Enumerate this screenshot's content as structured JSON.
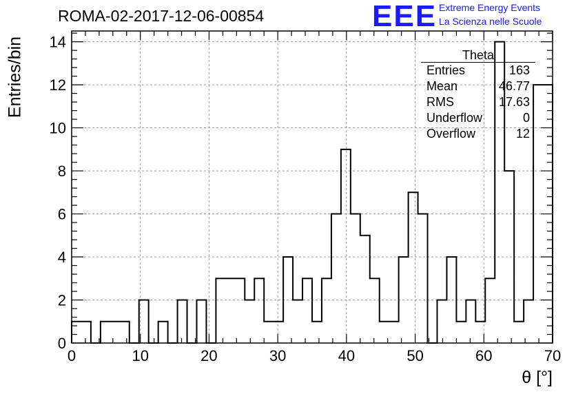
{
  "run_title": "ROMA-02-2017-12-06-00854",
  "logo": {
    "text": "EEE",
    "line1": "Extreme Energy Events",
    "line2": "La Scienza nelle Scuole",
    "color": "#1a1aff"
  },
  "stats": {
    "name": "Theta",
    "rows": [
      {
        "label": "Entries",
        "value": "163"
      },
      {
        "label": "Mean",
        "value": "46.77"
      },
      {
        "label": "RMS",
        "value": "17.63"
      },
      {
        "label": "Underflow",
        "value": "0"
      },
      {
        "label": "Overflow",
        "value": "12"
      }
    ]
  },
  "chart_data": {
    "type": "bar",
    "style": "step-histogram",
    "title": "ROMA-02-2017-12-06-00854",
    "xlabel": "θ [°]",
    "ylabel": "Entries/bin",
    "xlim": [
      0,
      70
    ],
    "ylim": [
      0,
      14.5
    ],
    "bin_width": 1.4,
    "xticks": [
      0,
      10,
      20,
      30,
      40,
      50,
      60,
      70
    ],
    "yticks": [
      0,
      2,
      4,
      6,
      8,
      10,
      12,
      14
    ],
    "grid": true,
    "values": [
      1,
      1,
      0,
      1,
      1,
      1,
      0,
      2,
      0,
      1,
      0,
      2,
      0,
      2,
      0,
      3,
      3,
      3,
      2,
      3,
      1,
      1,
      4,
      2,
      3,
      1,
      3,
      6,
      9,
      6,
      5,
      3,
      1,
      1,
      4,
      7,
      6,
      0,
      2,
      4,
      1,
      2,
      1,
      3,
      14,
      8,
      1,
      2,
      12,
      12
    ]
  }
}
